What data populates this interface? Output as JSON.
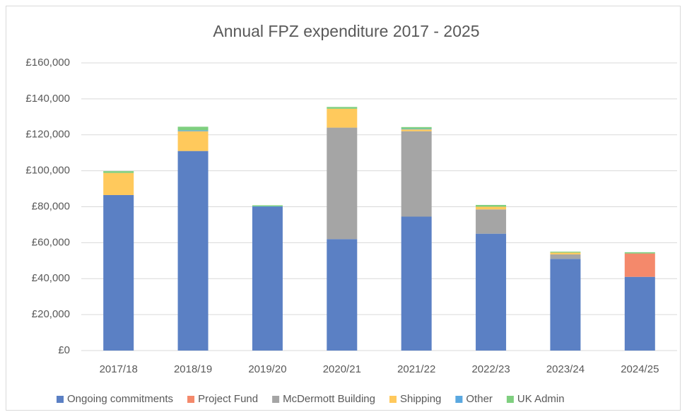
{
  "chart_data": {
    "type": "stacked_bar",
    "title": "Annual FPZ expenditure 2017 - 2025",
    "categories": [
      "2017/18",
      "2018/19",
      "2019/20",
      "2020/21",
      "2021/22",
      "2022/23",
      "2023/24",
      "2024/25"
    ],
    "series": [
      {
        "name": "Ongoing commitments",
        "color": "#5b80c4",
        "values": [
          86500,
          111000,
          80000,
          62000,
          74500,
          65000,
          51000,
          41000
        ]
      },
      {
        "name": "Project Fund",
        "color": "#f4896b",
        "values": [
          0,
          0,
          0,
          0,
          0,
          0,
          0,
          13000
        ]
      },
      {
        "name": "McDermott Building",
        "color": "#a5a5a5",
        "values": [
          0,
          0,
          0,
          62000,
          47500,
          13500,
          2500,
          0
        ]
      },
      {
        "name": "Shipping",
        "color": "#ffc95c",
        "values": [
          12300,
          11000,
          0,
          10500,
          1000,
          1500,
          1000,
          0
        ]
      },
      {
        "name": "Other",
        "color": "#5aa8e0",
        "values": [
          0,
          500,
          200,
          0,
          300,
          0,
          0,
          0
        ]
      },
      {
        "name": "UK Admin",
        "color": "#7fcf7f",
        "values": [
          1000,
          2000,
          600,
          1000,
          1000,
          1000,
          500,
          700
        ]
      }
    ],
    "ylim": [
      0,
      160000
    ],
    "yticks": [
      {
        "value": 0,
        "label": "£0"
      },
      {
        "value": 20000,
        "label": "£20,000"
      },
      {
        "value": 40000,
        "label": "£40,000"
      },
      {
        "value": 60000,
        "label": "£60,000"
      },
      {
        "value": 80000,
        "label": "£80,000"
      },
      {
        "value": 100000,
        "label": "£100,000"
      },
      {
        "value": 120000,
        "label": "£120,000"
      },
      {
        "value": 140000,
        "label": "£140,000"
      },
      {
        "value": 160000,
        "label": "£160,000"
      }
    ],
    "grid": true,
    "legend": "bottom"
  }
}
